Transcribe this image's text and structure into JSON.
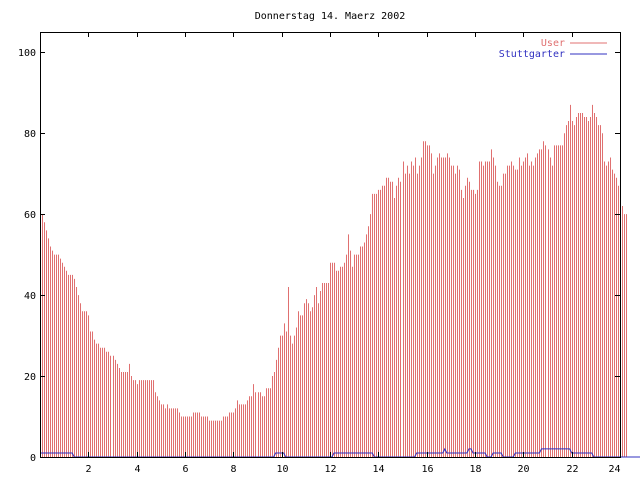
{
  "chart_data": {
    "type": "bar",
    "title": "Donnerstag 14. Maerz 2002",
    "xlabel": "",
    "ylabel": "",
    "xlim": [
      0,
      24
    ],
    "ylim": [
      0,
      105
    ],
    "x_ticks": [
      2,
      4,
      6,
      8,
      10,
      12,
      14,
      16,
      18,
      20,
      22,
      24
    ],
    "x_tick_labels": [
      "2",
      "4",
      "6",
      "8",
      "10",
      "12",
      "14",
      "16",
      "18",
      "20",
      "22",
      "24"
    ],
    "y_ticks": [
      0,
      20,
      40,
      60,
      80,
      100
    ],
    "y_tick_labels": [
      "0",
      "20",
      "40",
      "60",
      "80",
      "100"
    ],
    "grid": false,
    "legend_position": "top-right",
    "sample_interval_minutes": 5,
    "colors": {
      "user": "#e07070",
      "stuttgarter": "#3030c0",
      "axis": "#000000"
    },
    "series": [
      {
        "name": "User",
        "style": "impulses",
        "values": [
          60,
          60,
          58,
          56,
          54,
          52,
          51,
          50,
          50,
          50,
          49,
          48,
          47,
          46,
          45,
          45,
          45,
          44,
          42,
          40,
          38,
          36,
          36,
          36,
          35,
          31,
          31,
          29,
          28,
          28,
          27,
          27,
          27,
          26,
          26,
          25,
          25,
          24,
          23,
          22,
          21,
          21,
          21,
          21,
          23,
          20,
          19,
          19,
          18,
          19,
          19,
          19,
          19,
          19,
          19,
          19,
          19,
          16,
          15,
          14,
          13,
          13,
          12,
          13,
          12,
          12,
          12,
          12,
          12,
          11,
          10,
          10,
          10,
          10,
          10,
          10,
          11,
          11,
          11,
          11,
          10,
          10,
          10,
          10,
          9,
          9,
          9,
          9,
          9,
          9,
          9,
          10,
          10,
          10,
          11,
          11,
          11,
          12,
          14,
          13,
          13,
          13,
          13,
          14,
          15,
          15,
          18,
          16,
          16,
          16,
          15,
          15,
          17,
          17,
          17,
          20,
          21,
          24,
          27,
          30,
          30,
          33,
          31,
          42,
          30,
          28,
          30,
          32,
          36,
          35,
          35,
          38,
          39,
          38,
          36,
          37,
          40,
          42,
          38,
          41,
          43,
          43,
          43,
          43,
          48,
          48,
          48,
          46,
          46,
          47,
          47,
          48,
          50,
          55,
          51,
          47,
          50,
          50,
          50,
          52,
          52,
          53,
          55,
          57,
          60,
          65,
          65,
          65,
          66,
          66,
          67,
          67,
          69,
          69,
          68,
          68,
          64,
          67,
          69,
          68,
          73,
          70,
          72,
          70,
          73,
          72,
          74,
          70,
          72,
          74,
          78,
          78,
          77,
          77,
          75,
          70,
          72,
          74,
          75,
          74,
          74,
          74,
          75,
          74,
          72,
          72,
          70,
          72,
          71,
          66,
          64,
          67,
          69,
          68,
          66,
          66,
          65,
          66,
          73,
          73,
          72,
          73,
          73,
          73,
          76,
          74,
          72,
          68,
          67,
          67,
          70,
          70,
          72,
          72,
          73,
          72,
          71,
          71,
          74,
          72,
          73,
          74,
          75,
          72,
          73,
          72,
          74,
          75,
          76,
          76,
          78,
          77,
          76,
          74,
          72,
          77,
          77,
          77,
          77,
          77,
          80,
          82,
          83,
          87,
          83,
          82,
          84,
          85,
          85,
          85,
          84,
          84,
          83,
          84,
          87,
          85,
          84,
          82,
          82,
          80,
          73,
          72,
          73,
          74,
          71,
          70,
          69,
          67,
          65,
          62,
          60,
          60
        ]
      },
      {
        "name": "Stuttgarter",
        "style": "lines",
        "values": [
          1,
          1,
          1,
          1,
          1,
          1,
          1,
          1,
          1,
          1,
          1,
          1,
          1,
          1,
          1,
          1,
          1,
          0,
          0,
          0,
          0,
          0,
          0,
          0,
          0,
          0,
          0,
          0,
          0,
          0,
          0,
          0,
          0,
          0,
          0,
          0,
          0,
          0,
          0,
          0,
          0,
          0,
          0,
          0,
          0,
          0,
          0,
          0,
          0,
          0,
          0,
          0,
          0,
          0,
          0,
          0,
          0,
          0,
          0,
          0,
          0,
          0,
          0,
          0,
          0,
          0,
          0,
          0,
          0,
          0,
          0,
          0,
          0,
          0,
          0,
          0,
          0,
          0,
          0,
          0,
          0,
          0,
          0,
          0,
          0,
          0,
          0,
          0,
          0,
          0,
          0,
          0,
          0,
          0,
          0,
          0,
          0,
          0,
          0,
          0,
          0,
          0,
          0,
          0,
          0,
          0,
          0,
          0,
          0,
          0,
          0,
          0,
          0,
          0,
          0,
          0,
          0,
          1,
          1,
          1,
          1,
          1,
          0,
          0,
          0,
          0,
          0,
          0,
          0,
          0,
          0,
          0,
          0,
          0,
          0,
          0,
          0,
          0,
          0,
          0,
          0,
          0,
          0,
          0,
          0,
          0,
          1,
          1,
          1,
          1,
          1,
          1,
          1,
          1,
          1,
          1,
          1,
          1,
          1,
          1,
          1,
          1,
          1,
          1,
          1,
          1,
          0,
          0,
          0,
          0,
          0,
          0,
          0,
          0,
          0,
          0,
          0,
          0,
          0,
          0,
          0,
          0,
          0,
          0,
          0,
          0,
          0,
          1,
          1,
          1,
          1,
          1,
          1,
          1,
          1,
          1,
          1,
          1,
          1,
          1,
          1,
          2,
          1,
          1,
          1,
          1,
          1,
          1,
          1,
          1,
          1,
          1,
          1,
          2,
          2,
          1,
          1,
          1,
          1,
          1,
          1,
          1,
          0,
          0,
          0,
          1,
          1,
          1,
          1,
          1,
          0,
          0,
          0,
          0,
          0,
          0,
          1,
          1,
          1,
          1,
          1,
          1,
          1,
          1,
          1,
          1,
          1,
          1,
          1,
          2,
          2,
          2,
          2,
          2,
          2,
          2,
          2,
          2,
          2,
          2,
          2,
          2,
          2,
          2,
          1,
          1,
          1,
          1,
          1,
          1,
          1,
          1,
          1,
          1,
          1,
          0,
          0,
          0,
          0,
          0,
          0,
          0,
          0,
          0,
          0,
          0,
          0,
          0,
          0,
          0,
          0,
          0,
          0,
          0,
          0,
          0,
          0,
          0,
          0,
          0,
          0,
          0,
          0,
          0,
          0,
          0,
          0,
          0,
          0,
          0,
          0,
          0,
          0,
          0,
          0,
          0,
          0,
          0,
          0,
          0,
          0
        ]
      }
    ]
  }
}
